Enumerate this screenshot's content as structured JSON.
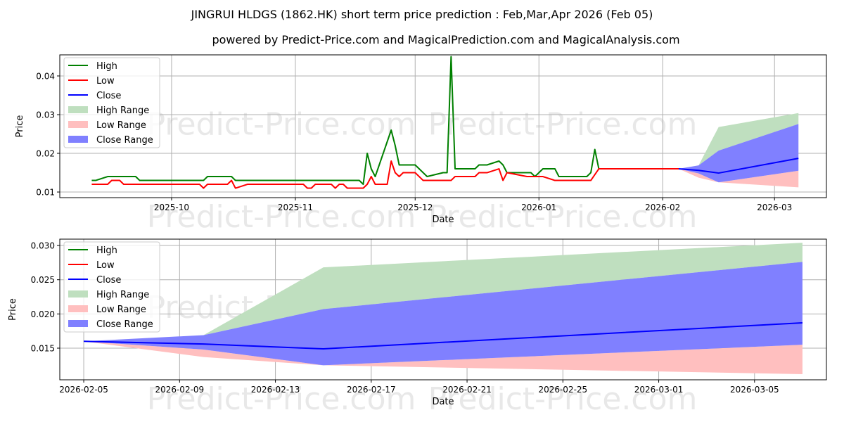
{
  "title": "JINGRUI HLDGS (1862.HK) short term price prediction : Feb,Mar,Apr 2026 (Feb 05)",
  "subtitle": "powered by Predict-Price.com and MagicalPrediction.com and MagicalAnalysis.com",
  "watermark": "Predict-Price.com",
  "colors": {
    "high": "#008000",
    "low": "#ff0000",
    "close": "#0000ff",
    "high_range": "#bfdfbf",
    "low_range": "#ffbfbf",
    "close_range": "#8080ff"
  },
  "chart_data": [
    {
      "type": "line",
      "xlabel": "Date",
      "ylabel": "Price",
      "ylim": [
        0.00855,
        0.04545
      ],
      "xlim": [
        "2025-09-03",
        "2026-03-14"
      ],
      "grid": true,
      "legend_position": "top-left",
      "legend": [
        "High",
        "Low",
        "Close",
        "High Range",
        "Low Range",
        "Close Range"
      ],
      "yticks": [
        {
          "v": 0.01,
          "label": "0.01"
        },
        {
          "v": 0.02,
          "label": "0.02"
        },
        {
          "v": 0.03,
          "label": "0.03"
        },
        {
          "v": 0.04,
          "label": "0.04"
        }
      ],
      "xticks": [
        {
          "d": "2025-10-01",
          "label": "2025-10"
        },
        {
          "d": "2025-11-01",
          "label": "2025-11"
        },
        {
          "d": "2025-12-01",
          "label": "2025-12"
        },
        {
          "d": "2026-01-01",
          "label": "2026-01"
        },
        {
          "d": "2026-02-01",
          "label": "2026-02"
        },
        {
          "d": "2026-03-01",
          "label": "2026-03"
        }
      ],
      "high": [
        [
          "2025-09-11",
          0.013
        ],
        [
          "2025-09-12",
          0.013
        ],
        [
          "2025-09-15",
          0.014
        ],
        [
          "2025-09-22",
          0.014
        ],
        [
          "2025-09-23",
          0.013
        ],
        [
          "2025-10-09",
          0.013
        ],
        [
          "2025-10-10",
          0.014
        ],
        [
          "2025-10-16",
          0.014
        ],
        [
          "2025-10-17",
          0.013
        ],
        [
          "2025-11-17",
          0.013
        ],
        [
          "2025-11-18",
          0.012
        ],
        [
          "2025-11-19",
          0.02
        ],
        [
          "2025-11-20",
          0.016
        ],
        [
          "2025-11-21",
          0.014
        ],
        [
          "2025-11-25",
          0.026
        ],
        [
          "2025-11-26",
          0.022
        ],
        [
          "2025-11-27",
          0.017
        ],
        [
          "2025-12-01",
          0.017
        ],
        [
          "2025-12-04",
          0.014
        ],
        [
          "2025-12-08",
          0.015
        ],
        [
          "2025-12-09",
          0.015
        ],
        [
          "2025-12-10",
          0.045
        ],
        [
          "2025-12-11",
          0.016
        ],
        [
          "2025-12-16",
          0.016
        ],
        [
          "2025-12-17",
          0.017
        ],
        [
          "2025-12-19",
          0.017
        ],
        [
          "2025-12-22",
          0.018
        ],
        [
          "2025-12-23",
          0.017
        ],
        [
          "2025-12-24",
          0.015
        ],
        [
          "2025-12-30",
          0.015
        ],
        [
          "2025-12-31",
          0.014
        ],
        [
          "2026-01-02",
          0.016
        ],
        [
          "2026-01-05",
          0.016
        ],
        [
          "2026-01-06",
          0.014
        ],
        [
          "2026-01-13",
          0.014
        ],
        [
          "2026-01-14",
          0.015
        ],
        [
          "2026-01-15",
          0.021
        ],
        [
          "2026-01-16",
          0.016
        ],
        [
          "2026-02-05",
          0.016
        ]
      ],
      "low": [
        [
          "2025-09-11",
          0.012
        ],
        [
          "2025-09-15",
          0.012
        ],
        [
          "2025-09-16",
          0.013
        ],
        [
          "2025-09-18",
          0.013
        ],
        [
          "2025-09-19",
          0.012
        ],
        [
          "2025-10-08",
          0.012
        ],
        [
          "2025-10-09",
          0.011
        ],
        [
          "2025-10-10",
          0.012
        ],
        [
          "2025-10-15",
          0.012
        ],
        [
          "2025-10-16",
          0.013
        ],
        [
          "2025-10-17",
          0.011
        ],
        [
          "2025-10-20",
          0.012
        ],
        [
          "2025-11-03",
          0.012
        ],
        [
          "2025-11-04",
          0.011
        ],
        [
          "2025-11-05",
          0.011
        ],
        [
          "2025-11-06",
          0.012
        ],
        [
          "2025-11-10",
          0.012
        ],
        [
          "2025-11-11",
          0.011
        ],
        [
          "2025-11-12",
          0.012
        ],
        [
          "2025-11-13",
          0.012
        ],
        [
          "2025-11-14",
          0.011
        ],
        [
          "2025-11-18",
          0.011
        ],
        [
          "2025-11-19",
          0.012
        ],
        [
          "2025-11-20",
          0.014
        ],
        [
          "2025-11-21",
          0.012
        ],
        [
          "2025-11-24",
          0.012
        ],
        [
          "2025-11-25",
          0.018
        ],
        [
          "2025-11-26",
          0.015
        ],
        [
          "2025-11-27",
          0.014
        ],
        [
          "2025-11-28",
          0.015
        ],
        [
          "2025-12-01",
          0.015
        ],
        [
          "2025-12-03",
          0.013
        ],
        [
          "2025-12-10",
          0.013
        ],
        [
          "2025-12-11",
          0.014
        ],
        [
          "2025-12-16",
          0.014
        ],
        [
          "2025-12-17",
          0.015
        ],
        [
          "2025-12-19",
          0.015
        ],
        [
          "2025-12-22",
          0.016
        ],
        [
          "2025-12-23",
          0.013
        ],
        [
          "2025-12-24",
          0.015
        ],
        [
          "2025-12-29",
          0.014
        ],
        [
          "2026-01-02",
          0.014
        ],
        [
          "2026-01-05",
          0.013
        ],
        [
          "2026-01-14",
          0.013
        ],
        [
          "2026-01-16",
          0.016
        ],
        [
          "2026-02-05",
          0.016
        ]
      ],
      "forecast": {
        "dates": [
          "2026-02-05",
          "2026-02-10",
          "2026-02-15",
          "2026-03-07"
        ],
        "close": [
          0.016,
          0.0156,
          0.0149,
          0.0187
        ],
        "close_range_low": [
          0.016,
          0.0148,
          0.0125,
          0.0155
        ],
        "close_range_high": [
          0.016,
          0.0169,
          0.0207,
          0.0276
        ],
        "high_range_high": [
          0.016,
          0.0169,
          0.0268,
          0.0304
        ],
        "low_range_low": [
          0.016,
          0.0137,
          0.0125,
          0.0112
        ]
      }
    },
    {
      "type": "area",
      "xlabel": "Date",
      "ylabel": "Price",
      "ylim": [
        0.010376,
        0.03093
      ],
      "xlim": [
        "2026-02-04",
        "2026-03-08"
      ],
      "grid": true,
      "legend_position": "top-left",
      "legend": [
        "High",
        "Low",
        "Close",
        "High Range",
        "Low Range",
        "Close Range"
      ],
      "yticks": [
        {
          "v": 0.015,
          "label": "0.015"
        },
        {
          "v": 0.02,
          "label": "0.020"
        },
        {
          "v": 0.025,
          "label": "0.025"
        },
        {
          "v": 0.03,
          "label": "0.030"
        }
      ],
      "xticks": [
        {
          "d": "2026-02-05",
          "label": "2026-02-05"
        },
        {
          "d": "2026-02-09",
          "label": "2026-02-09"
        },
        {
          "d": "2026-02-13",
          "label": "2026-02-13"
        },
        {
          "d": "2026-02-17",
          "label": "2026-02-17"
        },
        {
          "d": "2026-02-21",
          "label": "2026-02-21"
        },
        {
          "d": "2026-02-25",
          "label": "2026-02-25"
        },
        {
          "d": "2026-03-01",
          "label": "2026-03-01"
        },
        {
          "d": "2026-03-05",
          "label": "2026-03-05"
        }
      ],
      "high": [],
      "low": [],
      "forecast": {
        "dates": [
          "2026-02-05",
          "2026-02-10",
          "2026-02-15",
          "2026-03-07"
        ],
        "close": [
          0.016,
          0.0156,
          0.0149,
          0.0187
        ],
        "close_range_low": [
          0.016,
          0.0148,
          0.0125,
          0.0155
        ],
        "close_range_high": [
          0.016,
          0.0169,
          0.0207,
          0.0276
        ],
        "high_range_high": [
          0.016,
          0.0169,
          0.0268,
          0.0304
        ],
        "low_range_low": [
          0.016,
          0.0137,
          0.0125,
          0.0112
        ]
      }
    }
  ]
}
